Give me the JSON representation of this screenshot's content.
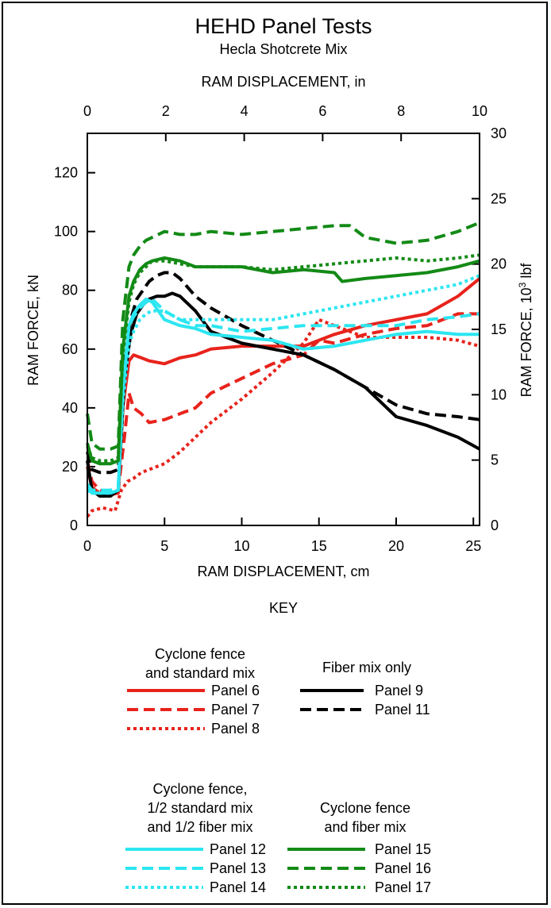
{
  "chart_data": {
    "type": "line",
    "title": "HEHD Panel Tests",
    "subtitle": "Hecla Shotcrete Mix",
    "xlabel": "RAM DISPLACEMENT, cm",
    "xlabel_top": "RAM DISPLACEMENT, in",
    "ylabel": "RAM FORCE, kN",
    "ylabel_right_prefix": "RAM FORCE, 10",
    "ylabel_right_sup": "3",
    "ylabel_right_suffix": " lbf",
    "xlim": [
      0,
      25.4
    ],
    "ylim": [
      0,
      133.4
    ],
    "xlim_top": [
      0,
      10
    ],
    "ylim_right": [
      0,
      30
    ],
    "xticks": [
      "0",
      "5",
      "10",
      "15",
      "20",
      "25"
    ],
    "yticks": [
      "0",
      "20",
      "40",
      "60",
      "80",
      "100",
      "120"
    ],
    "xticks_top": [
      "0",
      "2",
      "4",
      "6",
      "8",
      "10"
    ],
    "yticks_right": [
      "0",
      "5",
      "10",
      "15",
      "20",
      "25",
      "30"
    ],
    "key_title": "KEY",
    "legend_groups": [
      {
        "title": [
          "Cyclone fence",
          "and standard mix"
        ],
        "items": [
          "Panel 6",
          "Panel 7",
          "Panel 8"
        ]
      },
      {
        "title": [
          "Fiber mix only"
        ],
        "items": [
          "Panel 9",
          "Panel 11"
        ]
      },
      {
        "title": [
          "Cyclone fence,",
          "1/2 standard mix",
          "and 1/2 fiber mix"
        ],
        "items": [
          "Panel 12",
          "Panel 13",
          "Panel 14"
        ]
      },
      {
        "title": [
          "Cyclone fence",
          "and fiber mix"
        ],
        "items": [
          "Panel 15",
          "Panel 16",
          "Panel 17"
        ]
      }
    ],
    "series": [
      {
        "name": "Panel 6",
        "color": "#e8231c",
        "style": "solid",
        "x": [
          0,
          0.3,
          0.8,
          1.5,
          2.0,
          2.3,
          2.7,
          3.0,
          3.5,
          4.0,
          5.0,
          6.0,
          7.0,
          8.0,
          10.0,
          12.0,
          14.0,
          16.0,
          18.0,
          20.0,
          22.0,
          24.0,
          25.4
        ],
        "y": [
          20,
          13,
          11,
          10.5,
          11,
          40,
          56,
          58,
          57,
          56,
          55,
          57,
          58,
          60,
          61,
          61,
          61,
          65,
          68,
          70,
          72,
          78,
          84
        ]
      },
      {
        "name": "Panel 7",
        "color": "#e8231c",
        "style": "dashed",
        "x": [
          0,
          0.3,
          0.8,
          1.5,
          2.0,
          2.4,
          2.7,
          3.0,
          3.5,
          4.0,
          5.0,
          6.0,
          7.0,
          8.0,
          10.0,
          12.0,
          14.0,
          15.0,
          16.0,
          18.0,
          20.0,
          22.0,
          24.0,
          25.4
        ],
        "y": [
          22,
          15,
          12,
          11,
          12,
          30,
          45,
          40,
          38,
          35,
          36,
          38,
          40,
          45,
          50,
          55,
          58,
          63,
          62,
          65,
          67,
          68,
          72,
          72
        ]
      },
      {
        "name": "Panel 8",
        "color": "#e8231c",
        "style": "dotted",
        "x": [
          0,
          0.3,
          1.0,
          1.8,
          2.2,
          2.6,
          3.0,
          3.5,
          4.0,
          5.0,
          6.0,
          7.0,
          8.0,
          10.0,
          12.0,
          14.0,
          15.0,
          16.0,
          18.0,
          20.0,
          22.0,
          24.0,
          25.4
        ],
        "y": [
          3,
          5,
          6,
          5,
          12,
          15,
          16,
          18,
          19,
          21,
          25,
          30,
          35,
          43,
          52,
          62,
          70,
          68,
          64,
          64,
          64,
          63,
          61
        ]
      },
      {
        "name": "Panel 9",
        "color": "#000000",
        "style": "solid",
        "x": [
          0,
          0.3,
          0.8,
          1.5,
          2.0,
          2.4,
          2.8,
          3.2,
          3.6,
          4.0,
          4.5,
          5.0,
          5.5,
          6.0,
          7.0,
          8.0,
          10.0,
          12.0,
          14.0,
          16.0,
          18.0,
          20.0,
          22.0,
          24.0,
          25.4
        ],
        "y": [
          22,
          12,
          10,
          10,
          12,
          50,
          65,
          72,
          75,
          77,
          78,
          78,
          79,
          78,
          73,
          66,
          62,
          60,
          58,
          53,
          47,
          37,
          34,
          30,
          26
        ]
      },
      {
        "name": "Panel 11",
        "color": "#000000",
        "style": "dashed",
        "x": [
          0,
          0.3,
          0.8,
          1.5,
          2.0,
          2.4,
          2.8,
          3.2,
          3.6,
          4.0,
          4.5,
          5.0,
          5.5,
          6.0,
          7.0,
          8.0,
          10.0,
          12.0,
          14.0,
          16.0,
          18.0,
          20.0,
          22.0,
          24.0,
          25.4
        ],
        "y": [
          25,
          19,
          18,
          18,
          19,
          55,
          70,
          77,
          80,
          83,
          85,
          86,
          86,
          84,
          78,
          74,
          68,
          63,
          58,
          53,
          47,
          41,
          38,
          37,
          36
        ]
      },
      {
        "name": "Panel 12",
        "color": "#2ce6f0",
        "style": "solid",
        "x": [
          0,
          0.3,
          0.8,
          1.5,
          2.0,
          2.3,
          2.7,
          3.0,
          3.4,
          3.8,
          4.2,
          5.0,
          6.0,
          7.0,
          8.0,
          10.0,
          12.0,
          14.0,
          16.0,
          18.0,
          20.0,
          22.0,
          24.0,
          25.4
        ],
        "y": [
          13,
          11,
          11,
          11,
          12,
          45,
          68,
          72,
          75,
          77,
          76,
          70,
          68,
          67,
          65,
          64,
          63,
          60,
          61,
          63,
          65,
          66,
          65,
          65
        ]
      },
      {
        "name": "Panel 13",
        "color": "#2ce6f0",
        "style": "dashed",
        "x": [
          0,
          0.3,
          0.8,
          1.5,
          2.0,
          2.3,
          2.7,
          3.0,
          3.4,
          3.8,
          4.2,
          5.0,
          6.0,
          7.0,
          8.0,
          10.0,
          12.0,
          14.0,
          16.0,
          18.0,
          20.0,
          22.0,
          24.0,
          25.4
        ],
        "y": [
          14,
          12,
          12,
          12,
          13,
          48,
          68,
          71,
          74,
          76,
          77,
          73,
          70,
          68,
          68,
          66,
          67,
          68,
          68,
          68,
          68,
          70,
          71,
          72
        ]
      },
      {
        "name": "Panel 14",
        "color": "#2ce6f0",
        "style": "dotted",
        "x": [
          0,
          0.3,
          0.8,
          1.5,
          2.0,
          2.3,
          2.7,
          3.0,
          3.4,
          3.8,
          4.2,
          5.0,
          6.0,
          7.0,
          8.0,
          10.0,
          12.0,
          14.0,
          16.0,
          18.0,
          20.0,
          22.0,
          24.0,
          25.4
        ],
        "y": [
          12,
          11,
          11,
          11,
          12,
          42,
          62,
          66,
          70,
          72,
          73,
          73,
          70,
          70,
          70,
          70,
          70,
          72,
          74,
          76,
          78,
          80,
          82,
          85
        ]
      },
      {
        "name": "Panel 15",
        "color": "#138a16",
        "style": "solid",
        "x": [
          0,
          0.3,
          0.8,
          1.5,
          2.0,
          2.3,
          2.7,
          3.0,
          3.4,
          3.8,
          4.2,
          5.0,
          6.0,
          7.0,
          8.0,
          10.0,
          12.0,
          14.0,
          16.0,
          16.5,
          18.0,
          20.0,
          22.0,
          24.0,
          25.4
        ],
        "y": [
          28,
          22,
          21,
          21,
          22,
          60,
          78,
          83,
          87,
          89,
          90,
          91,
          90,
          88,
          88,
          88,
          86,
          87,
          86,
          83,
          84,
          85,
          86,
          88,
          90
        ]
      },
      {
        "name": "Panel 16",
        "color": "#138a16",
        "style": "dashed",
        "x": [
          0,
          0.3,
          0.8,
          1.5,
          2.0,
          2.3,
          2.7,
          3.0,
          3.4,
          3.8,
          4.2,
          5.0,
          6.0,
          7.0,
          8.0,
          10.0,
          12.0,
          14.0,
          16.0,
          17.0,
          18.0,
          20.0,
          22.0,
          24.0,
          25.4
        ],
        "y": [
          38,
          28,
          26,
          26,
          27,
          70,
          88,
          92,
          95,
          97,
          98,
          100,
          99,
          99,
          100,
          99,
          100,
          101,
          102,
          102,
          98,
          96,
          97,
          100,
          103
        ]
      },
      {
        "name": "Panel 17",
        "color": "#138a16",
        "style": "dotted",
        "x": [
          0,
          0.3,
          0.8,
          1.5,
          2.0,
          2.3,
          2.7,
          3.0,
          3.4,
          3.8,
          4.2,
          5.0,
          6.0,
          7.0,
          8.0,
          10.0,
          12.0,
          14.0,
          16.0,
          18.0,
          20.0,
          22.0,
          24.0,
          25.4
        ],
        "y": [
          27,
          23,
          22,
          22,
          23,
          58,
          76,
          82,
          86,
          88,
          90,
          90,
          89,
          88,
          88,
          88,
          87,
          88,
          89,
          90,
          91,
          90,
          91,
          92
        ]
      }
    ]
  }
}
